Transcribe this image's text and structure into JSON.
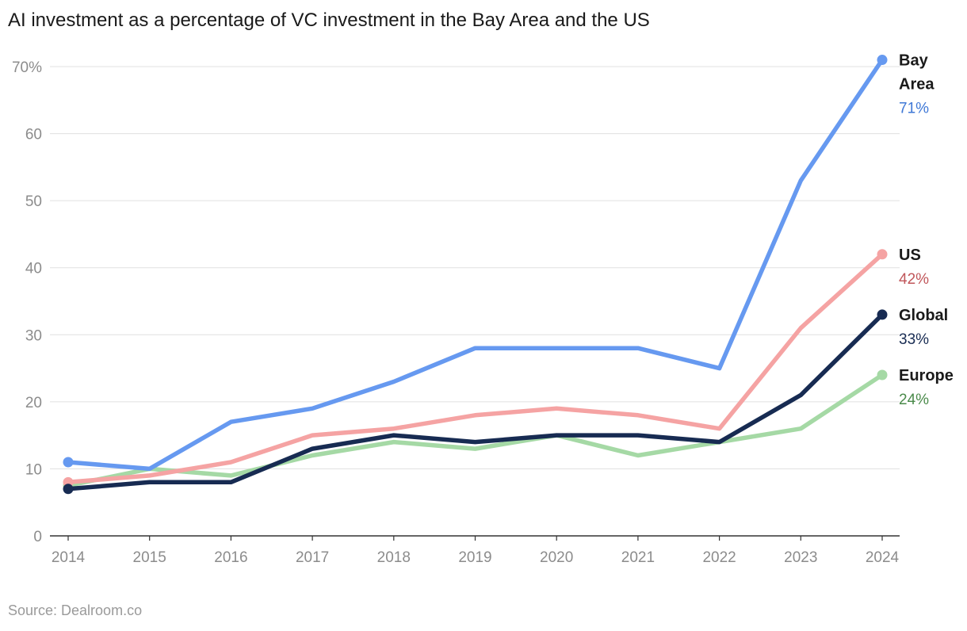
{
  "title": "AI investment as a percentage of VC investment in the Bay Area and the US",
  "source": "Source: Dealroom.co",
  "chart_data": {
    "type": "line",
    "x": [
      "2014",
      "2015",
      "2016",
      "2017",
      "2018",
      "2019",
      "2020",
      "2021",
      "2022",
      "2023",
      "2024"
    ],
    "ylim": [
      0,
      70
    ],
    "y_ticks": [
      "0",
      "10",
      "20",
      "30",
      "40",
      "50",
      "60",
      "70%"
    ],
    "grid": true,
    "series": [
      {
        "name": "Europe",
        "end_label": "24%",
        "color": "#a5d9a5",
        "label_color": "#4a8a4a",
        "values": [
          7.5,
          10,
          9,
          12,
          14,
          13,
          15,
          12,
          14,
          16,
          24
        ]
      },
      {
        "name": "US",
        "end_label": "42%",
        "color": "#f5a3a3",
        "label_color": "#c0565a",
        "values": [
          8,
          9,
          11,
          15,
          16,
          18,
          19,
          18,
          16,
          31,
          42
        ]
      },
      {
        "name": "Global",
        "end_label": "33%",
        "color": "#172b52",
        "label_color": "#172b52",
        "values": [
          7,
          8,
          8,
          13,
          15,
          14,
          15,
          15,
          14,
          21,
          33
        ]
      },
      {
        "name": "Bay Area",
        "name_lines": [
          "Bay",
          "Area"
        ],
        "end_label": "71%",
        "color": "#6699f0",
        "label_color": "#3f78d6",
        "values": [
          11,
          10,
          17,
          19,
          23,
          28,
          28,
          28,
          25,
          53,
          71
        ]
      }
    ]
  }
}
